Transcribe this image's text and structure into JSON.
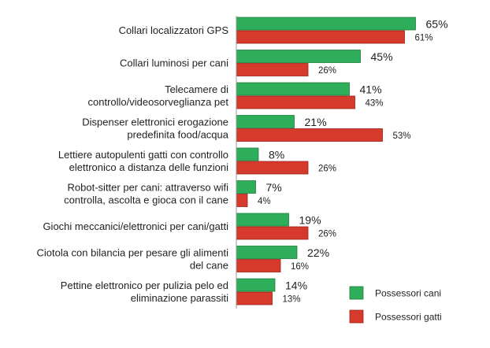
{
  "chart_data": {
    "type": "bar",
    "orientation": "horizontal",
    "categories": [
      [
        "Collari localizzatori GPS"
      ],
      [
        "Collari luminosi per cani"
      ],
      [
        "Telecamere di",
        "controllo/videosorveglianza pet"
      ],
      [
        "Dispenser elettronici erogazione",
        "predefinita food/acqua"
      ],
      [
        "Lettiere autopulenti gatti con controllo",
        "elettronico a distanza delle funzioni"
      ],
      [
        "Robot-sitter per cani: attraverso wifi",
        "controlla, ascolta e gioca con il cane"
      ],
      [
        "Giochi meccanici/elettronici per cani/gatti"
      ],
      [
        "Ciotola con bilancia per pesare gli alimenti",
        "del cane"
      ],
      [
        "Pettine elettronico per pulizia pelo ed",
        "eliminazione parassiti"
      ]
    ],
    "series": [
      {
        "name": "Possessori cani",
        "color": "#2eae5b",
        "values": [
          65,
          45,
          41,
          21,
          8,
          7,
          19,
          22,
          14
        ],
        "labels": [
          "65%",
          "45%",
          "41%",
          "21%",
          "8%",
          "7%",
          "19%",
          "22%",
          "14%"
        ]
      },
      {
        "name": "Possessori gatti",
        "color": "#d63a2c",
        "values": [
          61,
          26,
          43,
          53,
          26,
          4,
          26,
          16,
          13
        ],
        "labels": [
          "61%",
          "26%",
          "43%",
          "53%",
          "26%",
          "4%",
          "26%",
          "16%",
          "13%"
        ]
      }
    ],
    "xlim": [
      0,
      100
    ],
    "grid": false,
    "legend_position": "bottom-right",
    "title": "",
    "xlabel": "",
    "ylabel": ""
  }
}
